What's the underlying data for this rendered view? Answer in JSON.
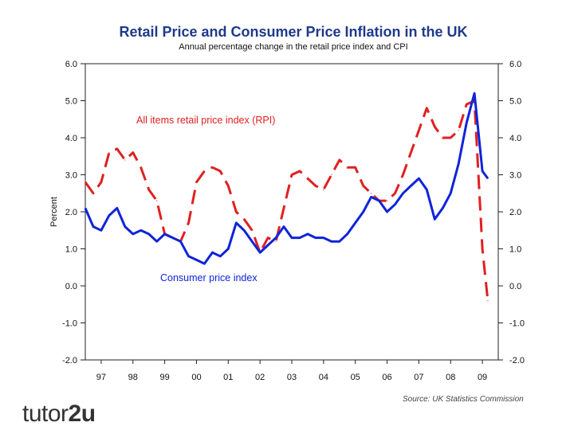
{
  "chart_data": {
    "type": "line",
    "title": "Retail Price and Consumer Price Inflation in the UK",
    "subtitle": "Annual percentage change in the retail price index and CPI",
    "ylabel": "Percent",
    "xlabel": "",
    "ylim": [
      -2.0,
      6.0
    ],
    "yticks": [
      "6.0",
      "5.0",
      "4.0",
      "3.0",
      "2.0",
      "1.0",
      "0.0",
      "-1.0",
      "-2.0"
    ],
    "xlim": [
      1996.5,
      2009.5
    ],
    "xtick_labels": [
      "97",
      "98",
      "99",
      "00",
      "01",
      "02",
      "03",
      "04",
      "05",
      "06",
      "07",
      "08",
      "09"
    ],
    "annotations": [
      "All items retail price index (RPI)",
      "Consumer price index"
    ],
    "series": [
      {
        "name": "All items retail price index (RPI)",
        "color": "#e02020",
        "style": "dashed",
        "x": [
          1996.5,
          1996.75,
          1997.0,
          1997.25,
          1997.5,
          1997.75,
          1998.0,
          1998.25,
          1998.5,
          1998.75,
          1999.0,
          1999.25,
          1999.5,
          1999.75,
          2000.0,
          2000.25,
          2000.5,
          2000.75,
          2001.0,
          2001.25,
          2001.5,
          2001.75,
          2002.0,
          2002.25,
          2002.5,
          2002.75,
          2003.0,
          2003.25,
          2003.5,
          2003.75,
          2004.0,
          2004.25,
          2004.5,
          2004.75,
          2005.0,
          2005.25,
          2005.5,
          2005.75,
          2006.0,
          2006.25,
          2006.5,
          2006.75,
          2007.0,
          2007.25,
          2007.5,
          2007.75,
          2008.0,
          2008.25,
          2008.5,
          2008.75,
          2009.0,
          2009.17
        ],
        "values": [
          2.8,
          2.5,
          2.8,
          3.6,
          3.7,
          3.4,
          3.6,
          3.2,
          2.6,
          2.3,
          1.4,
          1.3,
          1.2,
          1.7,
          2.8,
          3.1,
          3.2,
          3.1,
          2.7,
          2.0,
          1.8,
          1.5,
          0.9,
          1.3,
          1.2,
          2.1,
          3.0,
          3.1,
          2.9,
          2.7,
          2.6,
          3.0,
          3.4,
          3.2,
          3.2,
          2.7,
          2.5,
          2.3,
          2.3,
          2.5,
          3.0,
          3.6,
          4.2,
          4.8,
          4.3,
          4.0,
          4.0,
          4.2,
          4.9,
          5.0,
          1.0,
          -0.4
        ]
      },
      {
        "name": "Consumer price index",
        "color": "#1024d8",
        "style": "solid",
        "x": [
          1996.5,
          1996.75,
          1997.0,
          1997.25,
          1997.5,
          1997.75,
          1998.0,
          1998.25,
          1998.5,
          1998.75,
          1999.0,
          1999.25,
          1999.5,
          1999.75,
          2000.0,
          2000.25,
          2000.5,
          2000.75,
          2001.0,
          2001.25,
          2001.5,
          2001.75,
          2002.0,
          2002.25,
          2002.5,
          2002.75,
          2003.0,
          2003.25,
          2003.5,
          2003.75,
          2004.0,
          2004.25,
          2004.5,
          2004.75,
          2005.0,
          2005.25,
          2005.5,
          2005.75,
          2006.0,
          2006.25,
          2006.5,
          2006.75,
          2007.0,
          2007.25,
          2007.5,
          2007.75,
          2008.0,
          2008.25,
          2008.5,
          2008.75,
          2009.0,
          2009.17
        ],
        "values": [
          2.1,
          1.6,
          1.5,
          1.9,
          2.1,
          1.6,
          1.4,
          1.5,
          1.4,
          1.2,
          1.4,
          1.3,
          1.2,
          0.8,
          0.7,
          0.6,
          0.9,
          0.8,
          1.0,
          1.7,
          1.5,
          1.2,
          0.9,
          1.1,
          1.3,
          1.6,
          1.3,
          1.3,
          1.4,
          1.3,
          1.3,
          1.2,
          1.2,
          1.4,
          1.7,
          2.0,
          2.4,
          2.3,
          2.0,
          2.2,
          2.5,
          2.7,
          2.9,
          2.6,
          1.8,
          2.1,
          2.5,
          3.3,
          4.4,
          5.2,
          3.1,
          2.9
        ]
      }
    ]
  },
  "source_note": "Source: UK Statistics Commission",
  "logo": {
    "text_a": "tutor",
    "text_b": "2u"
  }
}
